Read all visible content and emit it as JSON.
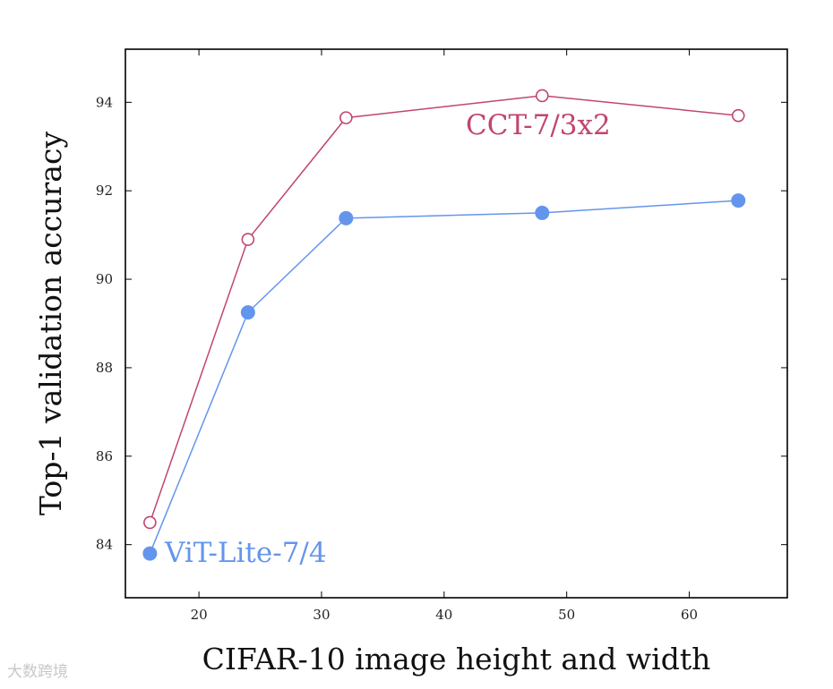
{
  "chart_data": {
    "type": "line",
    "xlabel": "CIFAR-10 image height and width",
    "ylabel": "Top-1 validation accuracy",
    "xlim": [
      14,
      68
    ],
    "ylim": [
      82.8,
      95.2
    ],
    "xticks": [
      20,
      30,
      40,
      50,
      60
    ],
    "yticks": [
      84,
      86,
      88,
      90,
      92,
      94
    ],
    "grid": false,
    "series": [
      {
        "name": "CCT-7/3x2",
        "color": "#c2456e",
        "marker": "open-circle",
        "x": [
          16,
          24,
          32,
          48,
          64
        ],
        "y": [
          84.5,
          90.9,
          93.65,
          94.15,
          93.7
        ]
      },
      {
        "name": "ViT-Lite-7/4",
        "color": "#6495ed",
        "marker": "filled-circle",
        "x": [
          16,
          24,
          32,
          48,
          64
        ],
        "y": [
          83.8,
          89.25,
          91.38,
          91.5,
          91.78
        ]
      }
    ]
  },
  "watermark": "大数跨境"
}
